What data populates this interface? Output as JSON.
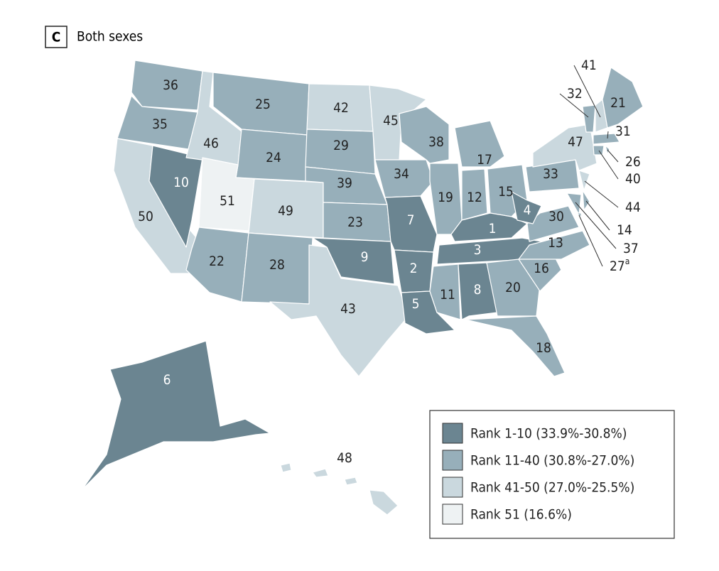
{
  "panel": "C",
  "title": "Both sexes",
  "legend": [
    {
      "label": "Rank 1-10 (33.9%-30.8%)",
      "color": "#6b8591"
    },
    {
      "label": "Rank 11-40 (30.8%-27.0%)",
      "color": "#97afba"
    },
    {
      "label": "Rank 41-50 (27.0%-25.5%)",
      "color": "#cad8de"
    },
    {
      "label": "Rank 51 (16.6%)",
      "color": "#eef2f3"
    }
  ],
  "states": [
    {
      "label": "36",
      "color": "#97afba"
    },
    {
      "label": "35",
      "color": "#97afba"
    },
    {
      "label": "50",
      "color": "#cad8de"
    },
    {
      "label": "10",
      "color": "#6b8591"
    },
    {
      "label": "46",
      "color": "#cad8de"
    },
    {
      "label": "25",
      "color": "#97afba"
    },
    {
      "label": "24",
      "color": "#97afba"
    },
    {
      "label": "51",
      "color": "#eef2f3"
    },
    {
      "label": "49",
      "color": "#cad8de"
    },
    {
      "label": "22",
      "color": "#97afba"
    },
    {
      "label": "28",
      "color": "#97afba"
    },
    {
      "label": "42",
      "color": "#cad8de"
    },
    {
      "label": "29",
      "color": "#97afba"
    },
    {
      "label": "39",
      "color": "#97afba"
    },
    {
      "label": "23",
      "color": "#97afba"
    },
    {
      "label": "9",
      "color": "#6b8591"
    },
    {
      "label": "43",
      "color": "#cad8de"
    },
    {
      "label": "45",
      "color": "#cad8de"
    },
    {
      "label": "34",
      "color": "#97afba"
    },
    {
      "label": "7",
      "color": "#6b8591"
    },
    {
      "label": "2",
      "color": "#6b8591"
    },
    {
      "label": "5",
      "color": "#6b8591"
    },
    {
      "label": "38",
      "color": "#97afba"
    },
    {
      "label": "19",
      "color": "#97afba"
    },
    {
      "label": "17",
      "color": "#97afba"
    },
    {
      "label": "12",
      "color": "#97afba"
    },
    {
      "label": "15",
      "color": "#97afba"
    },
    {
      "label": "1",
      "color": "#6b8591"
    },
    {
      "label": "3",
      "color": "#6b8591"
    },
    {
      "label": "11",
      "color": "#97afba"
    },
    {
      "label": "8",
      "color": "#6b8591"
    },
    {
      "label": "20",
      "color": "#97afba"
    },
    {
      "label": "18",
      "color": "#97afba"
    },
    {
      "label": "16",
      "color": "#97afba"
    },
    {
      "label": "13",
      "color": "#97afba"
    },
    {
      "label": "30",
      "color": "#97afba"
    },
    {
      "label": "4",
      "color": "#6b8591"
    },
    {
      "label": "33",
      "color": "#97afba"
    },
    {
      "label": "47",
      "color": "#cad8de"
    },
    {
      "label": "37",
      "color": "#97afba"
    },
    {
      "label": "14",
      "color": "#97afba"
    },
    {
      "label": "44",
      "color": "#cad8de"
    },
    {
      "label": "40",
      "color": "#97afba"
    },
    {
      "label": "26",
      "color": "#97afba"
    },
    {
      "label": "31",
      "color": "#97afba"
    },
    {
      "label": "32",
      "color": "#97afba"
    },
    {
      "label": "41",
      "color": "#cad8de"
    },
    {
      "label": "21",
      "color": "#97afba"
    },
    {
      "label": "27",
      "note": "a",
      "color": "#97afba"
    },
    {
      "label": "6",
      "color": "#6b8591"
    },
    {
      "label": "48",
      "color": "#cad8de"
    }
  ]
}
